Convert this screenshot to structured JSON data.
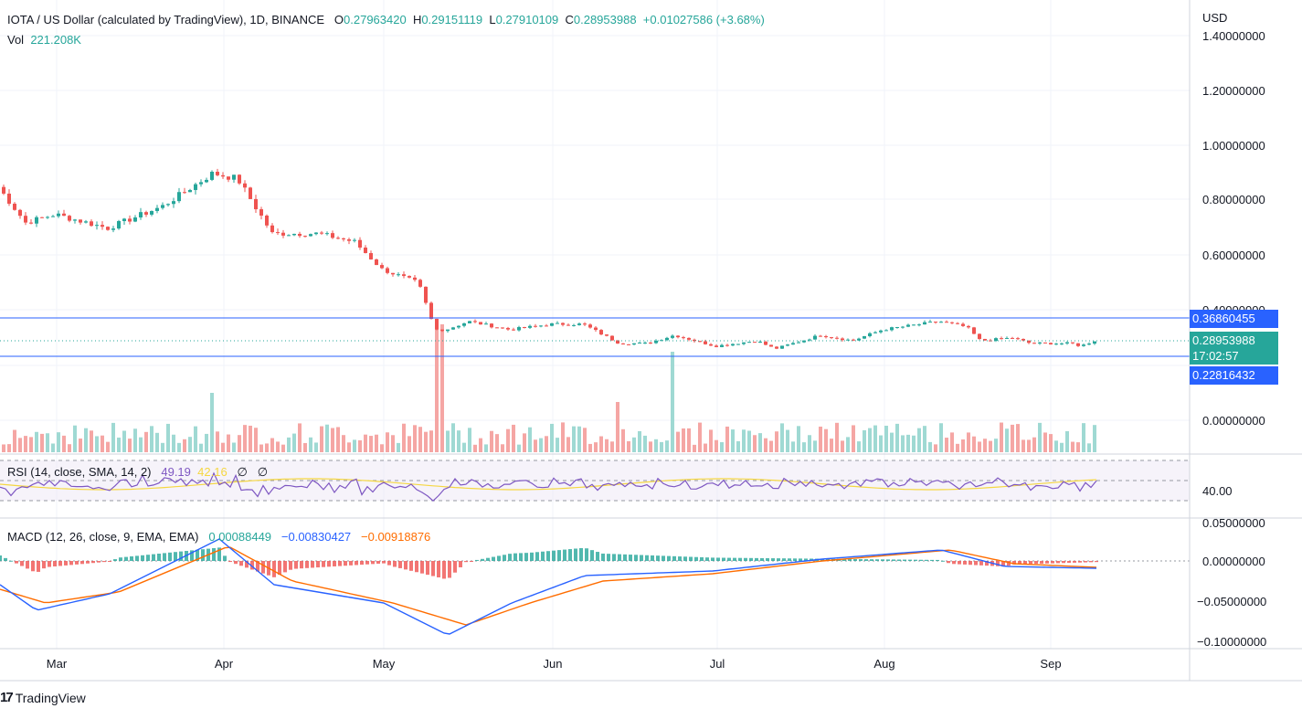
{
  "header": {
    "title": "IOTA / US Dollar (calculated by TradingView), 1D, BINANCE",
    "open_label": "O",
    "open": "0.27963420",
    "high_label": "H",
    "high": "0.29151119",
    "low_label": "L",
    "low": "0.27910109",
    "close_label": "C",
    "close": "0.28953988",
    "change": "+0.01027586 (+3.68%)",
    "vol_label": "Vol",
    "vol": "221.208K"
  },
  "axis": {
    "currency": "USD",
    "price_ticks": [
      "1.40000000",
      "1.20000000",
      "1.00000000",
      "0.80000000",
      "0.60000000",
      "0.40000000",
      "0.00000000"
    ],
    "months": [
      "Mar",
      "Apr",
      "May",
      "Jun",
      "Jul",
      "Aug",
      "Sep"
    ]
  },
  "levels": {
    "upper": "0.36860455",
    "current": "0.28953988",
    "countdown": "17:02:57",
    "lower": "0.22816432"
  },
  "rsi": {
    "label": "RSI (14, close, SMA, 14, 2)",
    "v1": "49.19",
    "v2": "42.16",
    "v3": "∅",
    "v4": "∅",
    "tick": "40.00"
  },
  "macd": {
    "label": "MACD (12, 26, close, 9, EMA, EMA)",
    "hist": "0.00088449",
    "macd": "−0.00830427",
    "signal": "−0.00918876",
    "ticks": [
      "0.05000000",
      "0.00000000",
      "−0.05000000",
      "−0.10000000"
    ]
  },
  "footer": {
    "brand": "TradingView"
  },
  "colors": {
    "up": "#26a69a",
    "down": "#ef5350",
    "level": "#2962ff",
    "rsi": "#7e57c2",
    "macd": "#2962ff",
    "signal": "#ff6d00"
  },
  "chart_data": {
    "type": "candlestick",
    "symbol": "IOTA/USD",
    "interval": "1D",
    "key_points": [
      {
        "date": "Mar",
        "close": 0.75
      },
      {
        "date": "Apr",
        "close": 0.9
      },
      {
        "date": "May",
        "close": 0.55
      },
      {
        "date": "Jun",
        "close": 0.35
      },
      {
        "date": "Jul",
        "close": 0.28
      },
      {
        "date": "Aug",
        "close": 0.33
      },
      {
        "date": "Sep",
        "close": 0.29
      }
    ],
    "horizontal_levels": [
      0.36860455,
      0.22816432
    ],
    "ylim": [
      0.0,
      1.4
    ]
  }
}
